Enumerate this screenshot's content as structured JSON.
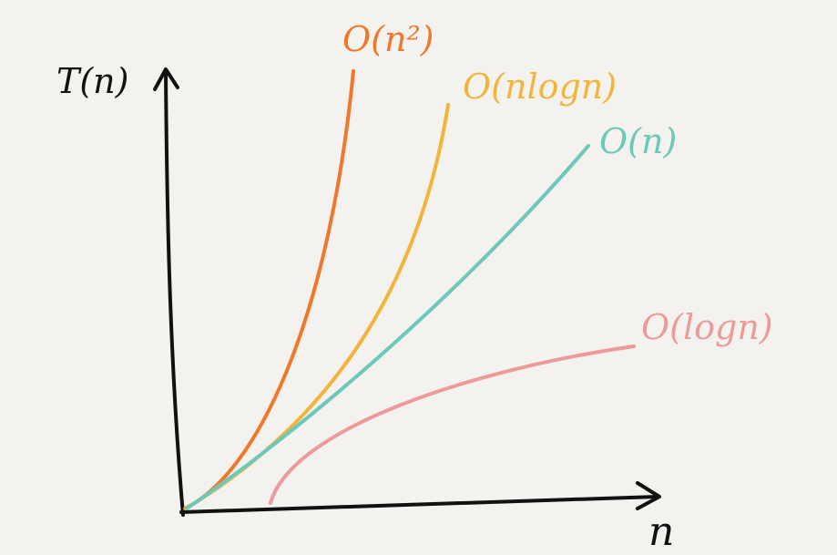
{
  "chart_data": {
    "type": "line",
    "xlabel": "n",
    "ylabel": "T(n)",
    "grid": false,
    "legend": "inline labels at line ends",
    "series": [
      {
        "name": "O(n²)",
        "color": "#f0782a",
        "function": "quadratic"
      },
      {
        "name": "O(nlogn)",
        "color": "#f2b43a",
        "function": "linearithmic"
      },
      {
        "name": "O(n)",
        "color": "#6cc8b8",
        "function": "linear"
      },
      {
        "name": "O(logn)",
        "color": "#ec9a9a",
        "function": "logarithmic"
      }
    ]
  },
  "colors": {
    "background": "#f4f2ee",
    "axis": "#111111"
  }
}
